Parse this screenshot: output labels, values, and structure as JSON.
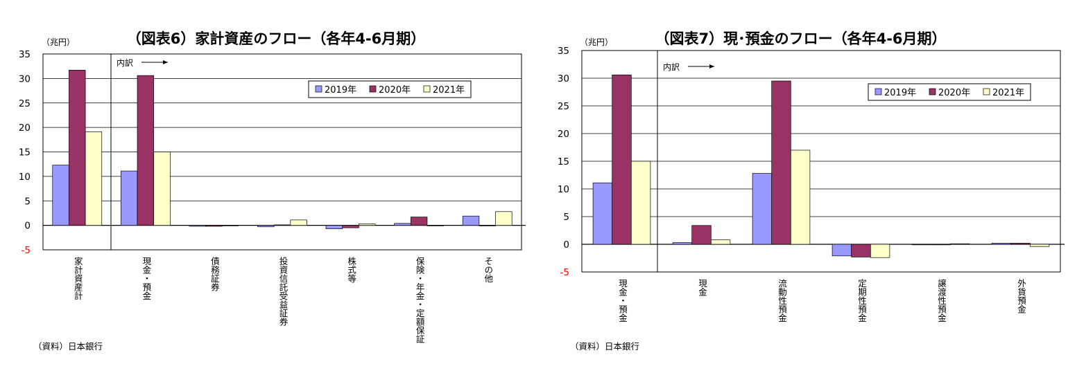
{
  "colors": {
    "series_2019": "#9999ff",
    "series_2020": "#993366",
    "series_2021": "#ffffcc",
    "negative_tick": "#ff0000",
    "grid": "#000000"
  },
  "chart_data": [
    {
      "type": "bar",
      "title": "（図表6）家計資産のフロー（各年4-6月期）",
      "unit_label": "（兆円）",
      "source": "（資料）日本銀行",
      "annotation": "内訳",
      "ylim": [
        -5,
        35
      ],
      "yticks": [
        35,
        30,
        25,
        20,
        15,
        10,
        5,
        0,
        -5
      ],
      "grid": true,
      "legend_position": "top-right",
      "categories": [
        "家計資産計",
        "現金・預金",
        "債務証券",
        "投資信託受益証券",
        "株式等",
        "保険・年金・定額保証",
        "その他"
      ],
      "series": [
        {
          "name": "2019年",
          "values": [
            12.3,
            11.1,
            -0.2,
            -0.3,
            -0.7,
            0.4,
            1.9
          ]
        },
        {
          "name": "2020年",
          "values": [
            31.7,
            30.6,
            -0.2,
            0.1,
            -0.5,
            1.7,
            0.0
          ]
        },
        {
          "name": "2021年",
          "values": [
            19.1,
            15.0,
            0.0,
            1.1,
            0.3,
            -0.1,
            2.8
          ]
        }
      ]
    },
    {
      "type": "bar",
      "title": "（図表7）現･預金のフロー（各年4-6月期）",
      "unit_label": "（兆円）",
      "source": "（資料）日本銀行",
      "annotation": "内訳",
      "ylim": [
        -5,
        35
      ],
      "yticks": [
        35,
        30,
        25,
        20,
        15,
        10,
        5,
        0,
        -5
      ],
      "grid": true,
      "legend_position": "top-right",
      "categories": [
        "現金・預金",
        "現金",
        "流動性預金",
        "定期性預金",
        "譲渡性預金",
        "外貨預金"
      ],
      "series": [
        {
          "name": "2019年",
          "values": [
            11.1,
            0.3,
            12.8,
            -2.1,
            0.0,
            0.2
          ]
        },
        {
          "name": "2020年",
          "values": [
            30.6,
            3.4,
            29.5,
            -2.3,
            0.0,
            0.2
          ]
        },
        {
          "name": "2021年",
          "values": [
            15.0,
            0.8,
            17.0,
            -2.4,
            0.1,
            -0.4
          ]
        }
      ]
    }
  ]
}
